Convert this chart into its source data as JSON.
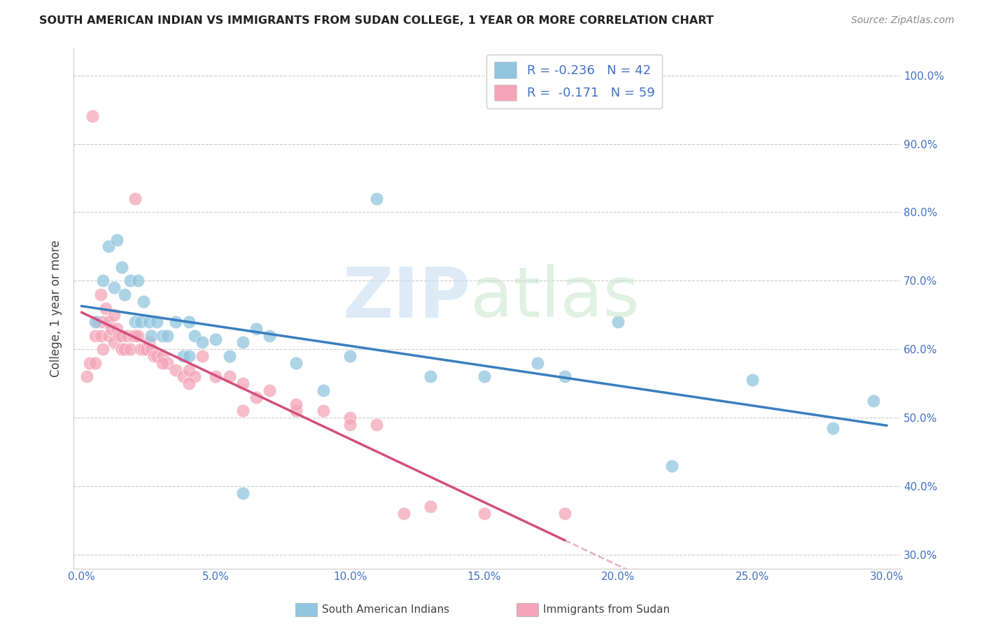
{
  "title": "SOUTH AMERICAN INDIAN VS IMMIGRANTS FROM SUDAN COLLEGE, 1 YEAR OR MORE CORRELATION CHART",
  "source": "Source: ZipAtlas.com",
  "blue_R": -0.236,
  "blue_N": 42,
  "pink_R": -0.171,
  "pink_N": 59,
  "legend_label_blue": "South American Indians",
  "legend_label_pink": "Immigrants from Sudan",
  "blue_color": "#92c5de",
  "pink_color": "#f4a6b8",
  "blue_line_color": "#3a7ebf",
  "pink_line_color": "#d44f7e",
  "blue_scatter_x": [
    0.005,
    0.008,
    0.01,
    0.012,
    0.013,
    0.015,
    0.016,
    0.018,
    0.02,
    0.021,
    0.022,
    0.023,
    0.025,
    0.026,
    0.028,
    0.03,
    0.032,
    0.035,
    0.038,
    0.04,
    0.042,
    0.045,
    0.05,
    0.055,
    0.06,
    0.065,
    0.07,
    0.08,
    0.09,
    0.1,
    0.11,
    0.13,
    0.15,
    0.17,
    0.2,
    0.22,
    0.25,
    0.28,
    0.295,
    0.18,
    0.04,
    0.06
  ],
  "blue_scatter_y": [
    0.64,
    0.7,
    0.75,
    0.69,
    0.76,
    0.72,
    0.68,
    0.7,
    0.64,
    0.7,
    0.64,
    0.67,
    0.64,
    0.62,
    0.64,
    0.62,
    0.62,
    0.64,
    0.59,
    0.64,
    0.62,
    0.61,
    0.615,
    0.59,
    0.61,
    0.63,
    0.62,
    0.58,
    0.54,
    0.59,
    0.82,
    0.56,
    0.56,
    0.58,
    0.64,
    0.43,
    0.555,
    0.485,
    0.525,
    0.56,
    0.59,
    0.39
  ],
  "pink_scatter_x": [
    0.002,
    0.003,
    0.004,
    0.005,
    0.005,
    0.006,
    0.007,
    0.007,
    0.008,
    0.008,
    0.009,
    0.01,
    0.01,
    0.011,
    0.012,
    0.012,
    0.013,
    0.014,
    0.015,
    0.015,
    0.016,
    0.017,
    0.018,
    0.019,
    0.02,
    0.021,
    0.022,
    0.023,
    0.024,
    0.025,
    0.026,
    0.027,
    0.028,
    0.03,
    0.032,
    0.035,
    0.038,
    0.04,
    0.042,
    0.045,
    0.05,
    0.055,
    0.06,
    0.065,
    0.07,
    0.08,
    0.09,
    0.1,
    0.11,
    0.13,
    0.02,
    0.03,
    0.04,
    0.06,
    0.08,
    0.1,
    0.12,
    0.15,
    0.18
  ],
  "pink_scatter_y": [
    0.56,
    0.58,
    0.94,
    0.62,
    0.58,
    0.64,
    0.62,
    0.68,
    0.64,
    0.6,
    0.66,
    0.64,
    0.62,
    0.63,
    0.65,
    0.61,
    0.63,
    0.62,
    0.62,
    0.6,
    0.6,
    0.62,
    0.6,
    0.62,
    0.62,
    0.62,
    0.6,
    0.6,
    0.6,
    0.61,
    0.6,
    0.59,
    0.59,
    0.59,
    0.58,
    0.57,
    0.56,
    0.57,
    0.56,
    0.59,
    0.56,
    0.56,
    0.55,
    0.53,
    0.54,
    0.51,
    0.51,
    0.5,
    0.49,
    0.37,
    0.82,
    0.58,
    0.55,
    0.51,
    0.52,
    0.49,
    0.36,
    0.36,
    0.36
  ]
}
